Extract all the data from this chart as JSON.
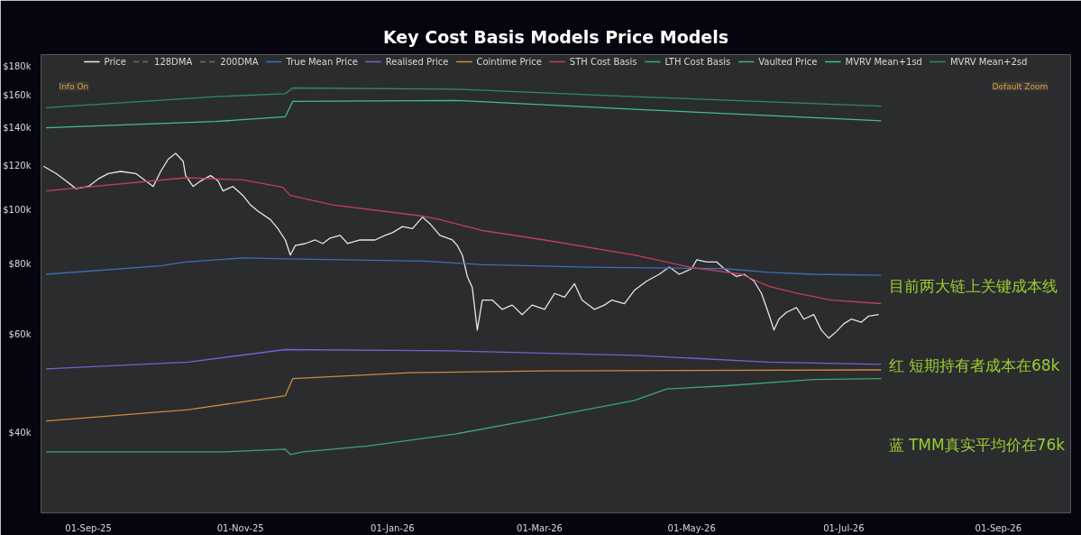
{
  "chart_data": {
    "type": "line",
    "title": "Key Cost Basis Models Price Models",
    "log": true,
    "grid": false,
    "legend": "top",
    "xlim": [
      "2025-08-13",
      "2026-09-30"
    ],
    "ylim": [
      28800,
      189000
    ],
    "xticks": [
      {
        "value": "2025-09-01",
        "label": "01-Sep-25"
      },
      {
        "value": "2025-11-01",
        "label": "01-Nov-25"
      },
      {
        "value": "2026-01-01",
        "label": "01-Jan-26"
      },
      {
        "value": "2026-03-01",
        "label": "01-Mar-26"
      },
      {
        "value": "2026-05-01",
        "label": "01-May-26"
      },
      {
        "value": "2026-07-01",
        "label": "01-Jul-26"
      },
      {
        "value": "2026-09-01",
        "label": "01-Sep-26"
      }
    ],
    "yticks": [
      {
        "value": 40000,
        "label": "$40k"
      },
      {
        "value": 60000,
        "label": "$60k"
      },
      {
        "value": 80000,
        "label": "$80k"
      },
      {
        "value": 100000,
        "label": "$100k"
      },
      {
        "value": 120000,
        "label": "$120k"
      },
      {
        "value": 140000,
        "label": "$140k"
      },
      {
        "value": 160000,
        "label": "$160k"
      },
      {
        "value": 180000,
        "label": "$180k"
      }
    ],
    "annotations": [
      "Info On",
      "Default Zoom",
      "目前两大链上关键成本线",
      "红 短期持有者成本在68k",
      "蓝 TMM真实平均价在76k"
    ],
    "series": [
      {
        "name": "Price",
        "color": "#e6e6e6",
        "x": [
          "2025-08-14",
          "2025-08-19",
          "2025-08-23",
          "2025-08-27",
          "2025-09-01",
          "2025-09-05",
          "2025-09-09",
          "2025-09-14",
          "2025-09-20",
          "2025-09-24",
          "2025-09-27",
          "2025-09-30",
          "2025-10-03",
          "2025-10-06",
          "2025-10-09",
          "2025-10-10",
          "2025-10-13",
          "2025-10-16",
          "2025-10-20",
          "2025-10-23",
          "2025-10-25",
          "2025-10-29",
          "2025-11-02",
          "2025-11-05",
          "2025-11-08",
          "2025-11-13",
          "2025-11-16",
          "2025-11-19",
          "2025-11-21",
          "2025-11-23",
          "2025-11-27",
          "2025-12-01",
          "2025-12-04",
          "2025-12-07",
          "2025-12-11",
          "2025-12-14",
          "2025-12-19",
          "2025-12-22",
          "2025-12-25",
          "2025-12-29",
          "2026-01-01",
          "2026-01-05",
          "2026-01-09",
          "2026-01-13",
          "2026-01-16",
          "2026-01-20",
          "2026-01-25",
          "2026-01-27",
          "2026-01-29",
          "2026-01-31",
          "2026-02-02",
          "2026-02-04",
          "2026-02-06",
          "2026-02-10",
          "2026-02-14",
          "2026-02-18",
          "2026-02-22",
          "2026-02-26",
          "2026-03-03",
          "2026-03-07",
          "2026-03-11",
          "2026-03-15",
          "2026-03-18",
          "2026-03-23",
          "2026-03-27",
          "2026-03-30",
          "2026-04-04",
          "2026-04-08",
          "2026-04-13",
          "2026-04-18",
          "2026-04-22",
          "2026-04-26",
          "2026-05-01",
          "2026-05-03",
          "2026-05-07",
          "2026-05-11",
          "2026-05-14",
          "2026-05-19",
          "2026-05-22",
          "2026-05-26",
          "2026-05-29",
          "2026-06-01",
          "2026-06-03",
          "2026-06-05",
          "2026-06-08",
          "2026-06-12",
          "2026-06-15",
          "2026-06-19",
          "2026-06-22",
          "2026-06-25",
          "2026-06-28",
          "2026-07-01",
          "2026-07-04",
          "2026-07-08",
          "2026-07-11",
          "2026-07-15"
        ],
        "values": [
          119500,
          116000,
          112500,
          109000,
          110000,
          113500,
          116000,
          117000,
          116000,
          112500,
          110000,
          117000,
          123000,
          126000,
          122000,
          115000,
          110000,
          112500,
          115000,
          112500,
          108000,
          110000,
          106000,
          102000,
          99400,
          96000,
          92500,
          88300,
          83000,
          86300,
          87000,
          88300,
          87000,
          89000,
          90000,
          87000,
          88300,
          88300,
          88300,
          90000,
          91000,
          93300,
          92500,
          97000,
          94400,
          90000,
          88300,
          86300,
          83000,
          76000,
          72600,
          61000,
          69000,
          69000,
          66400,
          67600,
          65000,
          67600,
          66400,
          70900,
          69800,
          73800,
          69000,
          66400,
          67600,
          69000,
          68000,
          71800,
          74600,
          76700,
          79000,
          76700,
          78500,
          81400,
          80700,
          80700,
          78500,
          76000,
          76700,
          74600,
          70900,
          65000,
          61000,
          63800,
          65600,
          66900,
          63800,
          65000,
          61000,
          59000,
          60600,
          62600,
          63800,
          63000,
          64600,
          65000
        ]
      },
      {
        "name": "128DMA",
        "color": "#6e6e6e",
        "line_style": "dashed"
      },
      {
        "name": "200DMA",
        "color": "#6e6e6e",
        "line_style": "dashed"
      },
      {
        "name": "True Mean Price",
        "color": "#3b6fb6",
        "x": [
          "2025-08-15",
          "2025-09-30",
          "2025-10-10",
          "2025-11-02",
          "2025-11-19",
          "2026-01-13",
          "2026-02-06",
          "2026-03-21",
          "2026-05-14",
          "2026-06-01",
          "2026-06-19",
          "2026-07-16"
        ],
        "values": [
          76700,
          79400,
          80700,
          82000,
          81700,
          81000,
          79800,
          79000,
          78500,
          77300,
          76700,
          76400
        ]
      },
      {
        "name": "Realised Price",
        "color": "#7a5fd0",
        "x": [
          "2025-08-15",
          "2025-10-11",
          "2025-11-19",
          "2026-01-26",
          "2026-04-08",
          "2026-06-01",
          "2026-07-16"
        ],
        "values": [
          52000,
          53500,
          56300,
          56000,
          55000,
          53500,
          53000
        ]
      },
      {
        "name": "Cointime Price",
        "color": "#d08a3a",
        "x": [
          "2025-08-15",
          "2025-10-11",
          "2025-11-19",
          "2025-11-22",
          "2026-01-08",
          "2026-03-03",
          "2026-07-16"
        ],
        "values": [
          42000,
          44000,
          46600,
          50000,
          51200,
          51600,
          51800
        ]
      },
      {
        "name": "STH Cost Basis",
        "color": "#c0405a",
        "x": [
          "2025-08-15",
          "2025-10-10",
          "2025-11-02",
          "2025-11-18",
          "2025-11-21",
          "2025-12-08",
          "2026-01-13",
          "2026-01-20",
          "2026-02-06",
          "2026-03-03",
          "2026-04-08",
          "2026-04-30",
          "2026-05-21",
          "2026-06-01",
          "2026-06-12",
          "2026-06-26",
          "2026-07-16"
        ],
        "values": [
          108000,
          114000,
          113000,
          109600,
          106000,
          102000,
          97400,
          96000,
          91800,
          88300,
          83000,
          79000,
          76700,
          73000,
          71000,
          69000,
          68000
        ]
      },
      {
        "name": "LTH Cost Basis",
        "color": "#3aa678",
        "x": [
          "2025-08-15",
          "2025-10-25",
          "2025-11-19",
          "2025-11-21",
          "2025-11-26",
          "2025-12-22",
          "2026-01-26",
          "2026-03-03",
          "2026-04-08",
          "2026-04-21",
          "2026-05-14",
          "2026-06-19",
          "2026-07-16"
        ],
        "values": [
          37000,
          37000,
          37400,
          36600,
          37000,
          37900,
          39800,
          42600,
          45700,
          47900,
          48500,
          49800,
          50000
        ]
      },
      {
        "name": "Vaulted Price",
        "color": "#4fa88a"
      },
      {
        "name": "MVRV Mean+1sd",
        "color": "#3fbf8f",
        "x": [
          "2025-08-15",
          "2025-10-22",
          "2025-11-19",
          "2025-11-22",
          "2026-01-26",
          "2026-04-08",
          "2026-07-16"
        ],
        "values": [
          140000,
          143600,
          146500,
          156000,
          156600,
          151000,
          144000
        ]
      },
      {
        "name": "MVRV Mean+2sd",
        "color": "#2e8b6a",
        "x": [
          "2025-08-15",
          "2025-10-22",
          "2025-11-19",
          "2025-11-22",
          "2026-01-26",
          "2026-04-08",
          "2026-07-16"
        ],
        "values": [
          152000,
          159000,
          161000,
          164800,
          164000,
          159000,
          153000
        ]
      }
    ]
  }
}
